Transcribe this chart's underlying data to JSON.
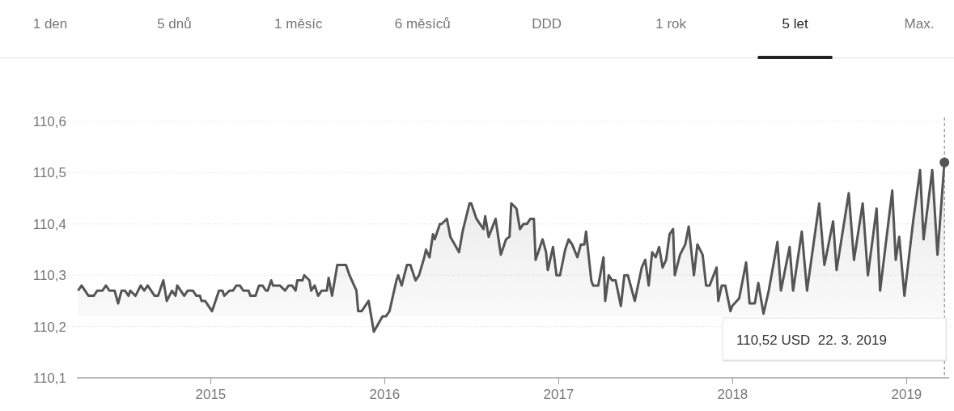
{
  "chart_data": {
    "type": "area",
    "color": "#555555",
    "x": [
      2014.24,
      2014.26,
      2014.3,
      2014.33,
      2014.35,
      2014.38,
      2014.4,
      2014.42,
      2014.45,
      2014.47,
      2014.49,
      2014.51,
      2014.53,
      2014.54,
      2014.57,
      2014.6,
      2014.62,
      2014.64,
      2014.68,
      2014.7,
      2014.73,
      2014.75,
      2014.78,
      2014.8,
      2014.81,
      2014.85,
      2014.87,
      2014.9,
      2014.92,
      2014.94,
      2014.95,
      2014.97,
      2015.01,
      2015.05,
      2015.07,
      2015.08,
      2015.11,
      2015.13,
      2015.15,
      2015.17,
      2015.19,
      2015.22,
      2015.23,
      2015.26,
      2015.28,
      2015.3,
      2015.32,
      2015.33,
      2015.35,
      2015.36,
      2015.4,
      2015.43,
      2015.45,
      2015.47,
      2015.49,
      2015.5,
      2015.53,
      2015.54,
      2015.57,
      2015.58,
      2015.6,
      2015.62,
      2015.64,
      2015.67,
      2015.68,
      2015.7,
      2015.73,
      2015.78,
      2015.8,
      2015.84,
      2015.85,
      2015.87,
      2015.91,
      2015.94,
      2015.99,
      2016.01,
      2016.03,
      2016.07,
      2016.08,
      2016.1,
      2016.13,
      2016.15,
      2016.18,
      2016.2,
      2016.23,
      2016.24,
      2016.26,
      2016.28,
      2016.29,
      2016.32,
      2016.33,
      2016.36,
      2016.38,
      2016.43,
      2016.45,
      2016.49,
      2016.5,
      2016.53,
      2016.57,
      2016.58,
      2016.6,
      2016.64,
      2016.67,
      2016.7,
      2016.72,
      2016.73,
      2016.76,
      2016.78,
      2016.8,
      2016.82,
      2016.84,
      2016.86,
      2016.87,
      2016.91,
      2016.93,
      2016.94,
      2016.97,
      2016.99,
      2017.01,
      2017.04,
      2017.06,
      2017.08,
      2017.11,
      2017.13,
      2017.15,
      2017.16,
      2017.19,
      2017.2,
      2017.23,
      2017.26,
      2017.27,
      2017.29,
      2017.31,
      2017.33,
      2017.36,
      2017.38,
      2017.4,
      2017.44,
      2017.48,
      2017.5,
      2017.52,
      2017.54,
      2017.56,
      2017.58,
      2017.6,
      2017.62,
      2017.64,
      2017.66,
      2017.67,
      2017.7,
      2017.73,
      2017.75,
      2017.78,
      2017.8,
      2017.83,
      2017.85,
      2017.87,
      2017.91,
      2017.92,
      2017.94,
      2017.96,
      2017.99,
      2018.0,
      2018.04,
      2018.08,
      2018.1,
      2018.13,
      2018.15,
      2018.18,
      2018.21,
      2018.26,
      2018.28,
      2018.33,
      2018.35,
      2018.4,
      2018.43,
      2018.5,
      2018.53,
      2018.58,
      2018.6,
      2018.67,
      2018.7,
      2018.75,
      2018.78,
      2018.83,
      2018.85,
      2018.92,
      2018.94,
      2018.96,
      2018.99,
      2019.04,
      2019.08,
      2019.1,
      2019.15,
      2019.18,
      2019.22
    ],
    "values": [
      110.27,
      110.28,
      110.26,
      110.26,
      110.27,
      110.27,
      110.28,
      110.27,
      110.27,
      110.245,
      110.27,
      110.27,
      110.26,
      110.27,
      110.26,
      110.28,
      110.27,
      110.28,
      110.26,
      110.26,
      110.29,
      110.25,
      110.27,
      110.26,
      110.28,
      110.26,
      110.27,
      110.27,
      110.26,
      110.26,
      110.25,
      110.25,
      110.23,
      110.27,
      110.27,
      110.26,
      110.27,
      110.27,
      110.28,
      110.28,
      110.27,
      110.27,
      110.26,
      110.26,
      110.28,
      110.28,
      110.27,
      110.27,
      110.29,
      110.28,
      110.28,
      110.27,
      110.28,
      110.28,
      110.27,
      110.29,
      110.29,
      110.3,
      110.29,
      110.27,
      110.28,
      110.26,
      110.27,
      110.27,
      110.295,
      110.26,
      110.32,
      110.32,
      110.3,
      110.27,
      110.23,
      110.23,
      110.25,
      110.19,
      110.22,
      110.22,
      110.23,
      110.29,
      110.3,
      110.28,
      110.32,
      110.32,
      110.29,
      110.3,
      110.335,
      110.35,
      110.335,
      110.38,
      110.37,
      110.4,
      110.4,
      110.41,
      110.375,
      110.345,
      110.385,
      110.44,
      110.44,
      110.41,
      110.39,
      110.415,
      110.375,
      110.41,
      110.34,
      110.37,
      110.375,
      110.44,
      110.43,
      110.39,
      110.4,
      110.4,
      110.41,
      110.41,
      110.33,
      110.37,
      110.345,
      110.31,
      110.355,
      110.3,
      110.3,
      110.35,
      110.37,
      110.36,
      110.335,
      110.36,
      110.36,
      110.385,
      110.29,
      110.28,
      110.28,
      110.335,
      110.25,
      110.3,
      110.29,
      110.29,
      110.24,
      110.3,
      110.3,
      110.25,
      110.315,
      110.33,
      110.28,
      110.345,
      110.335,
      110.355,
      110.315,
      110.33,
      110.38,
      110.39,
      110.3,
      110.34,
      110.36,
      110.395,
      110.3,
      110.36,
      110.34,
      110.28,
      110.28,
      110.315,
      110.25,
      110.28,
      110.28,
      110.23,
      110.24,
      110.255,
      110.325,
      110.245,
      110.245,
      110.285,
      110.225,
      110.27,
      110.365,
      110.27,
      110.355,
      110.27,
      110.385,
      110.27,
      110.44,
      110.32,
      110.405,
      110.31,
      110.46,
      110.33,
      110.44,
      110.3,
      110.43,
      110.27,
      110.465,
      110.33,
      110.375,
      110.26,
      110.405,
      110.505,
      110.37,
      110.505,
      110.34,
      110.52
    ],
    "xlim": [
      2014.233,
      2019.247
    ],
    "ylim": [
      110.1,
      110.6
    ],
    "xticks": [
      2015,
      2016,
      2017,
      2018,
      2019
    ],
    "yticks": [
      {
        "value": 110.1,
        "label": "110,1"
      },
      {
        "value": 110.2,
        "label": "110,2"
      },
      {
        "value": 110.3,
        "label": "110,3"
      },
      {
        "value": 110.4,
        "label": "110,4"
      },
      {
        "value": 110.5,
        "label": "110,5"
      },
      {
        "value": 110.6,
        "label": "110,6"
      }
    ],
    "grid": "y",
    "marker": "none",
    "line_style": "solid",
    "ref_lines": [
      {
        "axis": "x",
        "value": 2019.22,
        "line_style": "dashed",
        "color": "#777777"
      }
    ],
    "annotations": [
      "1 den",
      "5 dnů",
      "1 měsíc",
      "6 měsíců",
      "DDD",
      "1 rok",
      "5 let",
      "Max.",
      "110,52 USD  22. 3. 2019"
    ]
  }
}
